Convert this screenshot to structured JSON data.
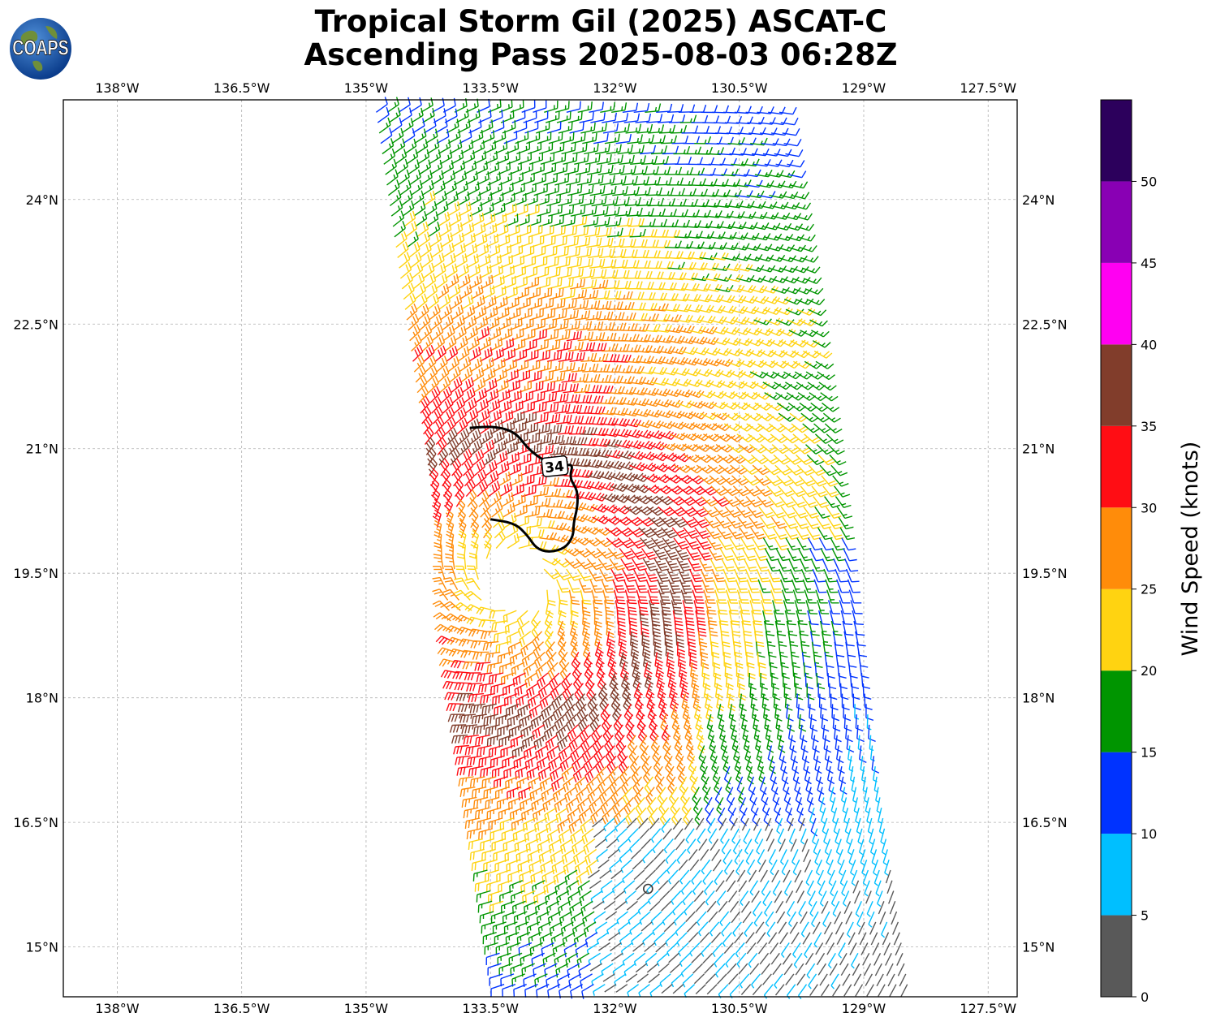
{
  "title": {
    "line1": "Tropical Storm Gil (2025) ASCAT-C",
    "line2": "Ascending Pass 2025-08-03 06:28Z"
  },
  "logo": {
    "text": "COAPS",
    "icon": "globe-icon"
  },
  "lon_ticks": [
    "138°W",
    "136.5°W",
    "135°W",
    "133.5°W",
    "132°W",
    "130.5°W",
    "129°W",
    "127.5°W"
  ],
  "lat_ticks": [
    "24°N",
    "22.5°N",
    "21°N",
    "19.5°N",
    "18°N",
    "16.5°N",
    "15°N"
  ],
  "colorbar": {
    "label": "Wind Speed (knots)",
    "tick_labels": [
      "0",
      "5",
      "10",
      "15",
      "20",
      "25",
      "30",
      "35",
      "40",
      "45",
      "50"
    ],
    "bins": [
      {
        "min": 0,
        "max": 5,
        "color": "#595959"
      },
      {
        "min": 5,
        "max": 10,
        "color": "#00bfff"
      },
      {
        "min": 10,
        "max": 15,
        "color": "#0033ff"
      },
      {
        "min": 15,
        "max": 20,
        "color": "#009500"
      },
      {
        "min": 20,
        "max": 25,
        "color": "#ffd311"
      },
      {
        "min": 25,
        "max": 30,
        "color": "#ff8c0a"
      },
      {
        "min": 30,
        "max": 35,
        "color": "#ff0d14"
      },
      {
        "min": 35,
        "max": 40,
        "color": "#813d2b"
      },
      {
        "min": 40,
        "max": 45,
        "color": "#ff00f2"
      },
      {
        "min": 45,
        "max": 50,
        "color": "#8900b4"
      },
      {
        "min": 50,
        "max": 55,
        "color": "#2c005c"
      }
    ]
  },
  "map_extent": {
    "lon_min": -138.65,
    "lon_max": -127.15,
    "lat_min": 14.4,
    "lat_max": 25.2
  },
  "storm_center": {
    "lon": -131.6,
    "lat": 15.7
  },
  "wind_radius_label": "34",
  "wind_radius_34kt": [
    [
      -133.75,
      21.25
    ],
    [
      -133.45,
      21.27
    ],
    [
      -133.2,
      21.2
    ],
    [
      -133.05,
      21.0
    ],
    [
      -132.85,
      20.85
    ],
    [
      -132.65,
      20.78
    ],
    [
      -132.5,
      20.82
    ],
    [
      -132.55,
      20.65
    ],
    [
      -132.45,
      20.5
    ],
    [
      -132.45,
      20.3
    ],
    [
      -132.5,
      20.1
    ],
    [
      -132.5,
      19.95
    ],
    [
      -132.6,
      19.8
    ],
    [
      -132.8,
      19.75
    ],
    [
      -132.95,
      19.8
    ],
    [
      -133.05,
      19.95
    ],
    [
      -133.2,
      20.1
    ],
    [
      -133.5,
      20.15
    ]
  ]
}
